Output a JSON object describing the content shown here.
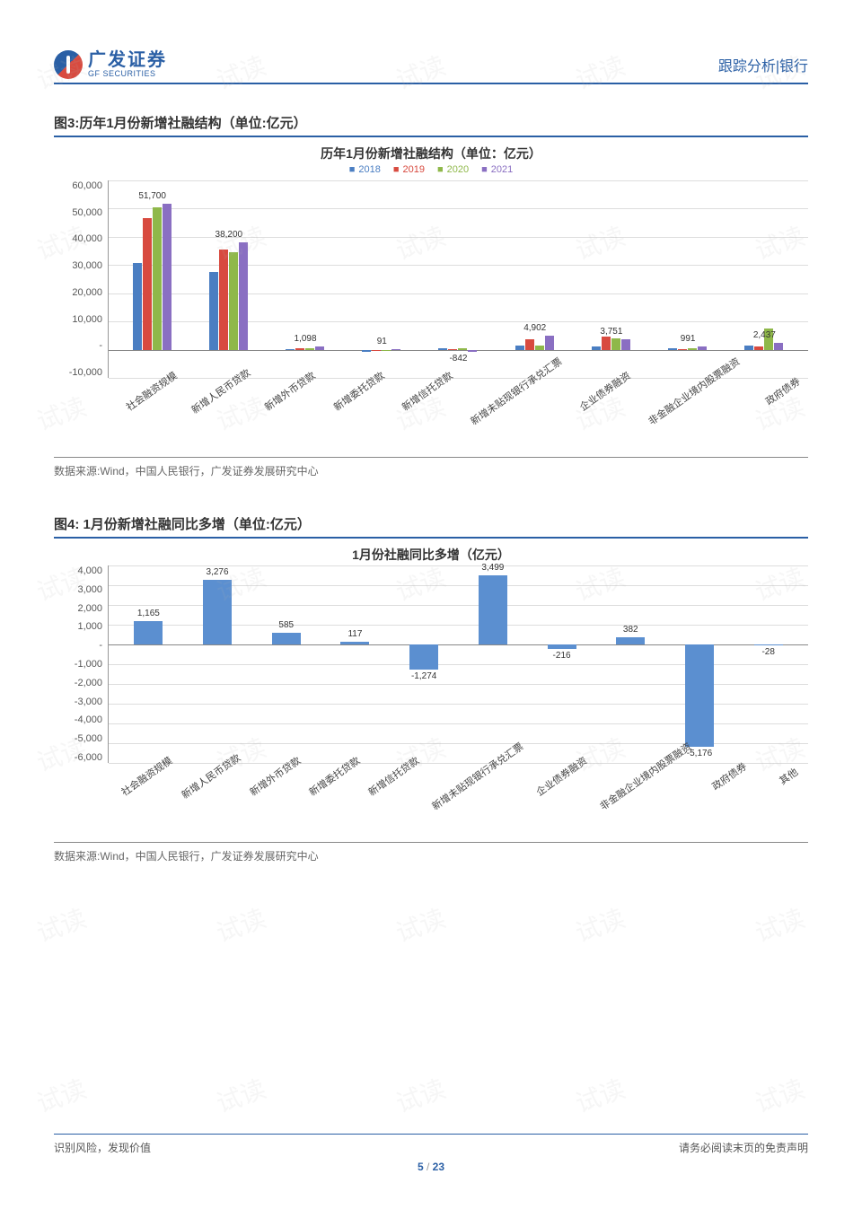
{
  "header": {
    "logo_cn": "广发证券",
    "logo_en": "GF SECURITIES",
    "right": "跟踪分析|银行"
  },
  "watermark_text": "试读",
  "chart3": {
    "fig_label": "图3:历年1月份新增社融结构（单位:亿元）",
    "title": "历年1月份新增社融结构（单位：亿元）",
    "type": "grouped-bar",
    "legend": [
      "2018",
      "2019",
      "2020",
      "2021"
    ],
    "legend_colors": [
      "#4a7ec2",
      "#d84a3f",
      "#8fb84a",
      "#8a6fc2"
    ],
    "ylim": [
      -10000,
      60000
    ],
    "yticks": [
      "60,000",
      "50,000",
      "40,000",
      "30,000",
      "20,000",
      "10,000",
      "-",
      "-10,000"
    ],
    "categories": [
      "社会融资规模",
      "新增人民币贷款",
      "新增外币贷款",
      "新增委托贷款",
      "新增信托贷款",
      "新增未贴现银行承兑汇票",
      "企业债券融资",
      "非金融企业境内股票融资",
      "政府债券"
    ],
    "series": {
      "2018": [
        30700,
        27500,
        300,
        -700,
        400,
        1400,
        1200,
        500,
        1300
      ],
      "2019": [
        46500,
        35500,
        400,
        -600,
        300,
        3800,
        4600,
        300,
        1100
      ],
      "2020": [
        50500,
        34400,
        500,
        -100,
        400,
        1400,
        3900,
        600,
        7600
      ],
      "2021": [
        51700,
        38200,
        1098,
        91,
        -842,
        4902,
        3751,
        991,
        2437
      ]
    },
    "data_labels": [
      "51,700",
      "38,200",
      "1,098",
      "91",
      "-842",
      "4,902",
      "3,751",
      "991",
      "2,437"
    ],
    "background_color": "#ffffff",
    "grid_color": "#dddddd"
  },
  "chart4": {
    "fig_label": "图4: 1月份新增社融同比多增（单位:亿元）",
    "title": "1月份社融同比多增（亿元）",
    "type": "bar",
    "bar_color": "#5b8fd0",
    "ylim": [
      -6000,
      4000
    ],
    "yticks": [
      "4,000",
      "3,000",
      "2,000",
      "1,000",
      "-",
      "-1,000",
      "-2,000",
      "-3,000",
      "-4,000",
      "-5,000",
      "-6,000"
    ],
    "categories": [
      "社会融资规模",
      "新增人民币贷款",
      "新增外币贷款",
      "新增委托贷款",
      "新增信托贷款",
      "新增未贴现银行承兑汇票",
      "企业债券融资",
      "非金融企业境内股票融资",
      "政府债券",
      "其他"
    ],
    "values": [
      1165,
      3276,
      585,
      117,
      -1274,
      3499,
      -216,
      382,
      -5176,
      -28
    ],
    "data_labels": [
      "1,165",
      "3,276",
      "585",
      "117",
      "-1,274",
      "3,499",
      "-216",
      "382",
      "-5,176",
      "-28"
    ],
    "background_color": "#ffffff",
    "grid_color": "#dddddd"
  },
  "source_text": "数据来源:Wind，中国人民银行，广发证券发展研究中心",
  "footer": {
    "left": "识别风险，发现价值",
    "right": "请务必阅读末页的免责声明",
    "page_current": "5",
    "page_sep": " / ",
    "page_total": "23"
  }
}
